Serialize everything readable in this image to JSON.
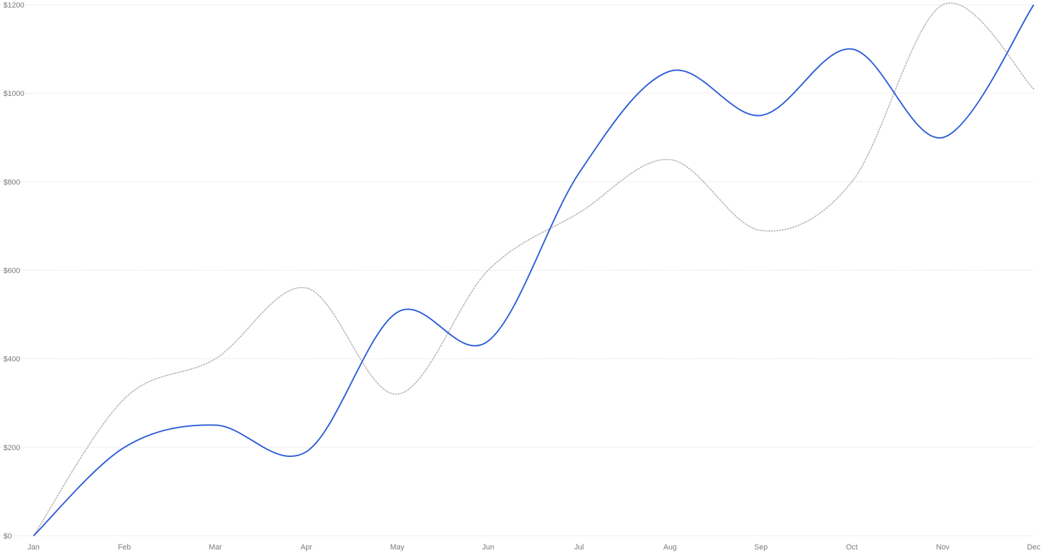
{
  "chart_data": {
    "type": "line",
    "categories": [
      "Jan",
      "Feb",
      "Mar",
      "Apr",
      "May",
      "Jun",
      "Jul",
      "Aug",
      "Sep",
      "Oct",
      "Nov",
      "Dec"
    ],
    "series": [
      {
        "key": "primary",
        "color": "#2f5fd8",
        "style": "solid",
        "values": [
          0,
          200,
          250,
          190,
          505,
          440,
          820,
          1050,
          950,
          1100,
          900,
          1200
        ]
      },
      {
        "key": "comparison",
        "color": "#b3b3b3",
        "style": "dotted",
        "values": [
          0,
          310,
          400,
          560,
          320,
          600,
          730,
          850,
          690,
          800,
          1200,
          1010
        ]
      }
    ],
    "y_ticks": [
      "$0",
      "$200",
      "$400",
      "$600",
      "$800",
      "$1000",
      "$1200"
    ],
    "ylim": [
      0,
      1200
    ],
    "grid": true,
    "legend": "none",
    "title": "",
    "xlabel": "",
    "ylabel": ""
  }
}
